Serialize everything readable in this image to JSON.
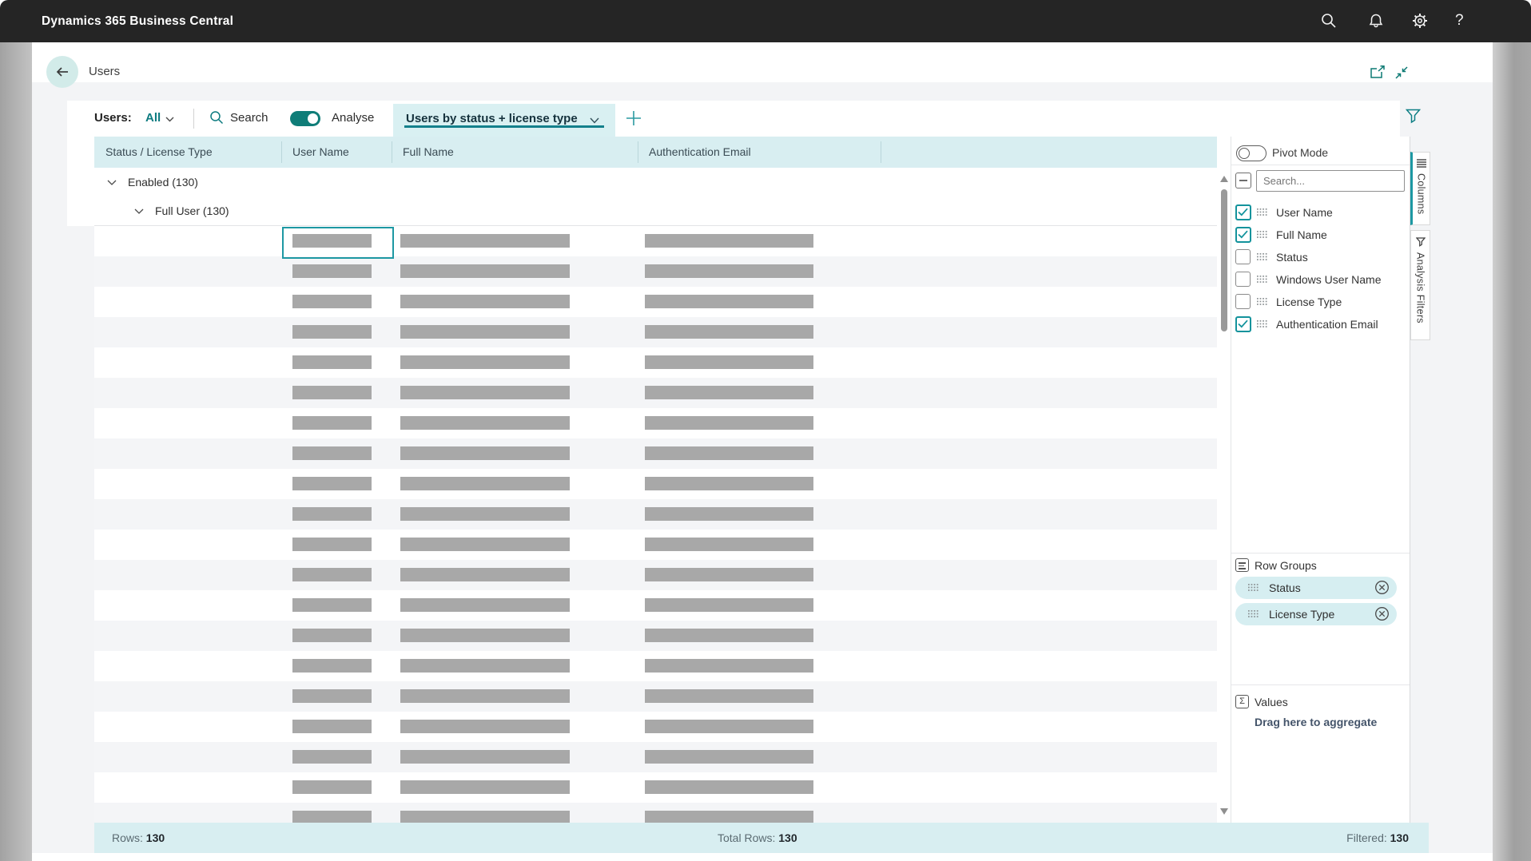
{
  "topbar": {
    "title": "Dynamics 365 Business Central",
    "icons": [
      "search-icon",
      "bell-icon",
      "gear-icon",
      "help-icon"
    ],
    "help_glyph": "?"
  },
  "page": {
    "title": "Users"
  },
  "toolbar": {
    "scope_label": "Users:",
    "scope_value": "All",
    "search_label": "Search",
    "analyse_label": "Analyse",
    "analyse_on": true,
    "tab_label": "Users by status + license type"
  },
  "grid": {
    "columns": [
      "Status / License Type",
      "User Name",
      "Full Name",
      "Authentication Email"
    ],
    "groups": [
      {
        "label": "Enabled (130)",
        "level": 1,
        "expanded": true
      },
      {
        "label": "Full User (130)",
        "level": 2,
        "expanded": true
      }
    ],
    "rows": {
      "count": 20,
      "selected_index": 0,
      "redacted": true
    }
  },
  "status_bar": {
    "rows_label": "Rows:",
    "rows_value": "130",
    "total_label": "Total Rows:",
    "total_value": "130",
    "filtered_label": "Filtered:",
    "filtered_value": "130"
  },
  "panel": {
    "pivot_label": "Pivot Mode",
    "pivot_on": false,
    "search_placeholder": "Search...",
    "fields": [
      {
        "label": "User Name",
        "checked": true
      },
      {
        "label": "Full Name",
        "checked": true
      },
      {
        "label": "Status",
        "checked": false
      },
      {
        "label": "Windows User Name",
        "checked": false
      },
      {
        "label": "License Type",
        "checked": false
      },
      {
        "label": "Authentication Email",
        "checked": true
      }
    ],
    "row_groups": {
      "title": "Row Groups",
      "items": [
        "Status",
        "License Type"
      ]
    },
    "values": {
      "title": "Values",
      "hint": "Drag here to aggregate",
      "sigma_glyph": "Σ"
    }
  },
  "side_tabs": [
    {
      "label": "Columns",
      "active": true
    },
    {
      "label": "Analysis Filters",
      "active": false
    }
  ],
  "colors": {
    "topbar_bg": "#252525",
    "accent_teal": "#0f7d78",
    "selection_teal": "#1d98a3",
    "header_band": "#d8eef1",
    "pill_bg": "#d6eef1",
    "placeholder_bar": "#a8a8a8",
    "page_bg": "#f3f4f6"
  }
}
